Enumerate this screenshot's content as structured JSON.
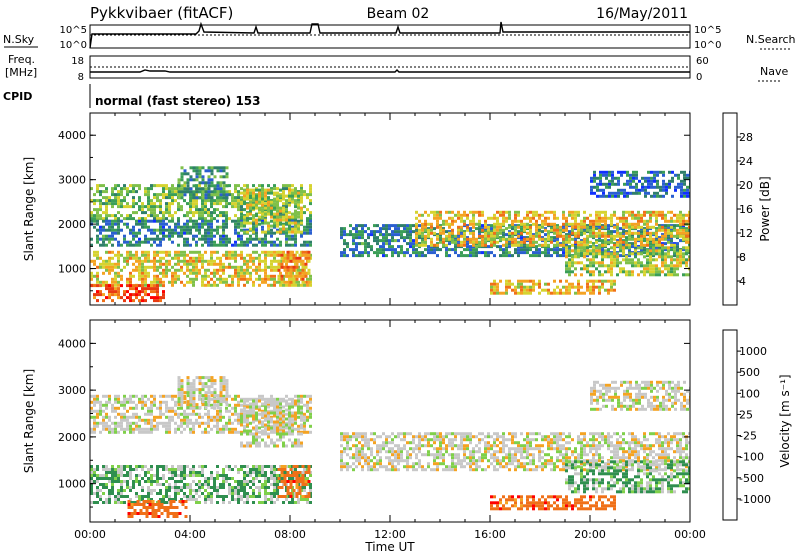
{
  "header": {
    "title": "Pykkvibaer (fitACF)",
    "beam": "Beam 02",
    "date": "16/May/2011"
  },
  "summary_panels": {
    "nsky_label": "N.Sky",
    "nsearch_label": "N.Search",
    "noise_ticks": [
      "10^5",
      "10^0"
    ],
    "freq_label": "Freq.",
    "freq_unit": "[MHz]",
    "freq_ticks": [
      "18",
      "8"
    ],
    "nave_label": "Nave",
    "nave_ticks": [
      "60",
      "0"
    ],
    "cpid_label": "CPID",
    "cpid_text": "normal (fast stereo) 153"
  },
  "chart_data": [
    {
      "type": "heatmap",
      "name": "power",
      "ylabel": "Slant Range [km]",
      "xlim": [
        0,
        24
      ],
      "ylim": [
        180,
        4500
      ],
      "y_ticks": [
        1000,
        2000,
        3000,
        4000
      ],
      "colorbar": {
        "label": "Power [dB]",
        "ticks": [
          "28",
          "24",
          "20",
          "16",
          "12",
          "8",
          "4"
        ],
        "tick_values": [
          28,
          24,
          20,
          16,
          12,
          8,
          4
        ],
        "range": [
          0,
          32
        ],
        "colors": [
          "#1030ff",
          "#2a5fd0",
          "#2f7f6a",
          "#3b9e57",
          "#7fc04a",
          "#d6d330",
          "#f4a322",
          "#f07018",
          "#e83a12",
          "#ff0000"
        ]
      },
      "bands": [
        {
          "t0": 0.0,
          "t1": 8.8,
          "r0": 2100,
          "r1": 2900,
          "power": 14
        },
        {
          "t0": 0.0,
          "t1": 8.8,
          "r0": 1500,
          "r1": 2100,
          "power": 8
        },
        {
          "t0": 0.0,
          "t1": 8.8,
          "r0": 600,
          "r1": 1400,
          "power": 18
        },
        {
          "t0": 0.0,
          "t1": 3.0,
          "r0": 250,
          "r1": 650,
          "power": 26
        },
        {
          "t0": 3.5,
          "t1": 5.5,
          "r0": 2600,
          "r1": 3300,
          "power": 10
        },
        {
          "t0": 6.0,
          "t1": 8.5,
          "r0": 1800,
          "r1": 2800,
          "power": 16
        },
        {
          "t0": 7.5,
          "t1": 8.8,
          "r0": 700,
          "r1": 1400,
          "power": 22
        },
        {
          "t0": 10.0,
          "t1": 24.0,
          "r0": 1300,
          "r1": 2000,
          "power": 8
        },
        {
          "t0": 13.0,
          "t1": 24.0,
          "r0": 1500,
          "r1": 2300,
          "power": 19
        },
        {
          "t0": 16.0,
          "t1": 21.0,
          "r0": 450,
          "r1": 750,
          "power": 20
        },
        {
          "t0": 19.0,
          "t1": 24.0,
          "r0": 850,
          "r1": 1500,
          "power": 16
        },
        {
          "t0": 20.0,
          "t1": 24.0,
          "r0": 2600,
          "r1": 3200,
          "power": 6
        }
      ]
    },
    {
      "type": "heatmap",
      "name": "velocity",
      "ylabel": "Slant Range [km]",
      "xlabel": "Time UT",
      "xlim": [
        0,
        24
      ],
      "ylim": [
        180,
        4500
      ],
      "x_ticks": [
        "00:00",
        "04:00",
        "08:00",
        "12:00",
        "16:00",
        "20:00",
        "00:00"
      ],
      "y_ticks": [
        1000,
        2000,
        3000,
        4000
      ],
      "colorbar": {
        "label": "Velocity [m s⁻¹]",
        "ticks": [
          "1000",
          "500",
          "100",
          "25",
          "-25",
          "-100",
          "-500",
          "-1000"
        ],
        "colors": [
          "#1438b0",
          "#2a6fa8",
          "#2f8f4f",
          "#7fd04a",
          "#c8c8c8",
          "#f4a322",
          "#f07018",
          "#ff0000"
        ]
      },
      "bands": [
        {
          "t0": 0.0,
          "t1": 8.8,
          "r0": 2100,
          "r1": 2900,
          "velocity": 0
        },
        {
          "t0": 3.5,
          "t1": 5.5,
          "r0": 2600,
          "r1": 3300,
          "velocity": 0
        },
        {
          "t0": 6.0,
          "t1": 8.5,
          "r0": 1800,
          "r1": 2800,
          "velocity": 0
        },
        {
          "t0": 0.0,
          "t1": 8.8,
          "r0": 600,
          "r1": 1400,
          "velocity": 60
        },
        {
          "t0": 1.5,
          "t1": 3.8,
          "r0": 300,
          "r1": 650,
          "velocity": -300
        },
        {
          "t0": 7.5,
          "t1": 8.8,
          "r0": 700,
          "r1": 1400,
          "velocity": -300
        },
        {
          "t0": 10.0,
          "t1": 24.0,
          "r0": 1300,
          "r1": 2100,
          "velocity": 0
        },
        {
          "t0": 16.0,
          "t1": 21.0,
          "r0": 450,
          "r1": 750,
          "velocity": -300
        },
        {
          "t0": 19.0,
          "t1": 24.0,
          "r0": 850,
          "r1": 1500,
          "velocity": 60
        },
        {
          "t0": 20.0,
          "t1": 24.0,
          "r0": 2600,
          "r1": 3200,
          "velocity": 0
        }
      ]
    }
  ]
}
